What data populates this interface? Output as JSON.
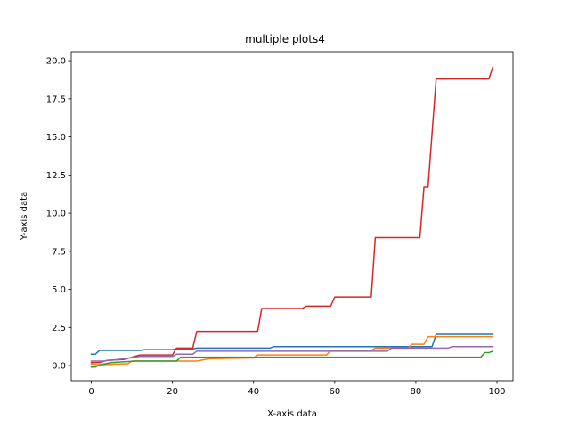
{
  "chart_data": {
    "type": "line",
    "title": "multiple plots4",
    "xlabel": "X-axis data",
    "ylabel": "Y-axis data",
    "xlim": [
      -4.95,
      103.95
    ],
    "ylim": [
      -0.99,
      20.59
    ],
    "xticks": [
      0,
      20,
      40,
      60,
      80,
      100
    ],
    "yticks": [
      0.0,
      2.5,
      5.0,
      7.5,
      10.0,
      12.5,
      15.0,
      17.5,
      20.0
    ],
    "xtick_labels": [
      "0",
      "20",
      "40",
      "60",
      "80",
      "100"
    ],
    "ytick_labels": [
      "0.0",
      "2.5",
      "5.0",
      "7.5",
      "10.0",
      "12.5",
      "15.0",
      "17.5",
      "20.0"
    ],
    "grid": false,
    "legend": "none",
    "series": [
      {
        "color": "#1f77b4",
        "points": [
          [
            0,
            0.75
          ],
          [
            1,
            0.75
          ],
          [
            2,
            1.0
          ],
          [
            12,
            1.0
          ],
          [
            13,
            1.05
          ],
          [
            20,
            1.05
          ],
          [
            21,
            1.1
          ],
          [
            25,
            1.1
          ],
          [
            26,
            1.15
          ],
          [
            44,
            1.15
          ],
          [
            45,
            1.25
          ],
          [
            84,
            1.25
          ],
          [
            85,
            2.05
          ],
          [
            99,
            2.05
          ]
        ]
      },
      {
        "color": "#ff7f0e",
        "points": [
          [
            0,
            0.1
          ],
          [
            2,
            0.05
          ],
          [
            6,
            0.1
          ],
          [
            9,
            0.12
          ],
          [
            10,
            0.3
          ],
          [
            26,
            0.3
          ],
          [
            27,
            0.35
          ],
          [
            29,
            0.45
          ],
          [
            40,
            0.5
          ],
          [
            41,
            0.7
          ],
          [
            58,
            0.7
          ],
          [
            59,
            1.0
          ],
          [
            69,
            1.0
          ],
          [
            70,
            1.15
          ],
          [
            78,
            1.15
          ],
          [
            79,
            1.4
          ],
          [
            82,
            1.4
          ],
          [
            83,
            1.9
          ],
          [
            99,
            1.9
          ]
        ]
      },
      {
        "color": "#2ca02c",
        "points": [
          [
            0,
            -0.1
          ],
          [
            1,
            -0.1
          ],
          [
            2,
            0.05
          ],
          [
            3,
            0.1
          ],
          [
            5,
            0.2
          ],
          [
            11,
            0.3
          ],
          [
            21,
            0.3
          ],
          [
            22,
            0.55
          ],
          [
            96,
            0.55
          ],
          [
            97,
            0.85
          ],
          [
            98,
            0.85
          ],
          [
            99,
            0.95
          ]
        ]
      },
      {
        "color": "#d62728",
        "points": [
          [
            0,
            0.2
          ],
          [
            2,
            0.2
          ],
          [
            4,
            0.35
          ],
          [
            8,
            0.4
          ],
          [
            12,
            0.7
          ],
          [
            20,
            0.7
          ],
          [
            21,
            1.15
          ],
          [
            25,
            1.15
          ],
          [
            26,
            2.25
          ],
          [
            41,
            2.25
          ],
          [
            42,
            3.75
          ],
          [
            52,
            3.75
          ],
          [
            53,
            3.9
          ],
          [
            59,
            3.9
          ],
          [
            60,
            4.5
          ],
          [
            69,
            4.5
          ],
          [
            70,
            8.4
          ],
          [
            81,
            8.4
          ],
          [
            82,
            11.7
          ],
          [
            83,
            11.7
          ],
          [
            85,
            18.8
          ],
          [
            98,
            18.8
          ],
          [
            99,
            19.6
          ]
        ]
      },
      {
        "color": "#9467bd",
        "points": [
          [
            0,
            0.3
          ],
          [
            3,
            0.3
          ],
          [
            5,
            0.35
          ],
          [
            8,
            0.45
          ],
          [
            12,
            0.6
          ],
          [
            20,
            0.6
          ],
          [
            21,
            0.75
          ],
          [
            25,
            0.75
          ],
          [
            26,
            0.95
          ],
          [
            57,
            0.95
          ],
          [
            58,
            0.95
          ],
          [
            73,
            0.95
          ],
          [
            74,
            1.15
          ],
          [
            88,
            1.15
          ],
          [
            89,
            1.25
          ],
          [
            99,
            1.25
          ]
        ]
      }
    ]
  }
}
